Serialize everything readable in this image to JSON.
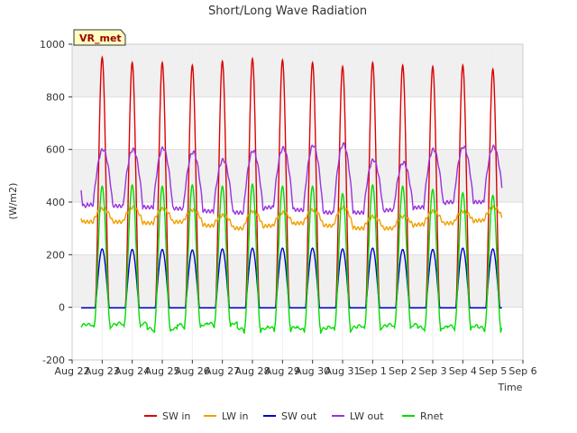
{
  "chart_data": {
    "type": "line",
    "title": "Short/Long Wave Radiation",
    "xlabel": "Time",
    "ylabel": "(W/m2)",
    "badge": "VR_met",
    "x_ticks": [
      "Aug 22",
      "Aug 23",
      "Aug 24",
      "Aug 25",
      "Aug 26",
      "Aug 27",
      "Aug 28",
      "Aug 29",
      "Aug 30",
      "Aug 31",
      "Sep 1",
      "Sep 2",
      "Sep 3",
      "Sep 4",
      "Sep 5",
      "Sep 6"
    ],
    "y_ticks": [
      -200,
      0,
      200,
      400,
      600,
      800,
      1000
    ],
    "ylim": [
      -200,
      1000
    ],
    "xlim_days": [
      0,
      15
    ],
    "grid": true,
    "legend_placement": "bottom",
    "x_day_offset": 0.5,
    "series": [
      {
        "name": "SW in",
        "color": "#dd0000",
        "night": -2,
        "day_peaks": [
          950,
          930,
          930,
          920,
          935,
          945,
          940,
          930,
          915,
          930,
          920,
          915,
          920,
          905
        ]
      },
      {
        "name": "LW in",
        "color": "#f0a000",
        "day_peaks": [
          375,
          380,
          375,
          370,
          350,
          365,
          360,
          370,
          380,
          345,
          345,
          365,
          365,
          380
        ],
        "night_values": [
          325,
          325,
          320,
          325,
          310,
          300,
          310,
          320,
          310,
          300,
          300,
          315,
          320,
          330
        ]
      },
      {
        "name": "SW out",
        "color": "#0000cc",
        "night": -2,
        "day_peaks": [
          222,
          220,
          220,
          218,
          222,
          225,
          225,
          225,
          222,
          225,
          220,
          220,
          225,
          222
        ]
      },
      {
        "name": "LW out",
        "color": "#9933dd",
        "day_peaks": [
          600,
          600,
          605,
          590,
          560,
          595,
          605,
          615,
          620,
          560,
          550,
          600,
          610,
          610
        ],
        "night_values": [
          390,
          385,
          380,
          375,
          365,
          360,
          380,
          370,
          360,
          360,
          370,
          380,
          400,
          400
        ]
      },
      {
        "name": "Rnet",
        "color": "#00dd00",
        "day_peaks": [
          460,
          465,
          460,
          465,
          460,
          468,
          460,
          460,
          432,
          465,
          460,
          448,
          435,
          425
        ],
        "night_values": [
          -65,
          -60,
          -80,
          -65,
          -60,
          -80,
          -75,
          -80,
          -75,
          -70,
          -65,
          -75,
          -70,
          -75
        ]
      }
    ]
  }
}
